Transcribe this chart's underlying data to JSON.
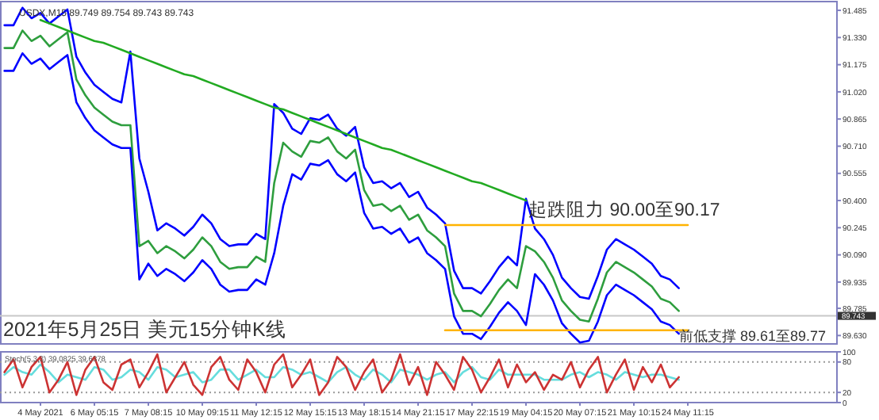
{
  "chart_data": [
    {
      "type": "line",
      "title": "USDX,M15 89.749 89.754 89.743 89.743",
      "annotations": [
        "起跌阻力 90.00至90.17",
        "前低支撑 89.61至89.77",
        "2021年5月25日 美元15分钟K线"
      ],
      "categories": [
        null,
        null,
        null,
        null,
        null,
        null,
        null,
        null,
        null,
        null,
        null,
        null,
        null,
        null,
        null,
        null,
        null,
        null,
        null,
        null,
        null,
        null,
        null,
        null,
        null,
        null,
        null,
        null,
        null,
        null,
        null,
        null,
        null,
        null,
        null,
        null,
        null,
        null,
        null,
        null,
        null,
        null,
        null,
        null,
        null,
        null,
        null,
        null,
        null,
        null,
        null,
        null,
        null,
        null,
        null,
        null,
        null,
        null,
        null,
        null,
        null,
        null,
        null,
        null,
        null,
        null,
        null,
        null,
        null,
        null,
        null,
        null,
        null,
        null,
        null,
        null,
        null,
        null,
        null,
        null,
        null,
        null,
        null,
        null,
        null,
        null,
        null,
        null,
        null,
        null,
        null,
        null,
        null
      ],
      "series": [
        {
          "color": "#0000ff",
          "values": [
            91.4,
            91.4,
            91.5,
            91.44,
            91.47,
            91.41,
            91.45,
            91.49,
            91.22,
            91.13,
            91.06,
            91.02,
            90.98,
            90.96,
            91.25,
            90.64,
            90.45,
            90.23,
            90.27,
            90.24,
            90.2,
            90.25,
            90.32,
            90.27,
            90.18,
            90.14,
            90.15,
            90.15,
            90.21,
            90.18,
            90.95,
            90.9,
            90.81,
            90.78,
            90.87,
            90.86,
            90.89,
            90.81,
            90.77,
            90.82,
            90.59,
            90.5,
            90.51,
            90.47,
            90.5,
            90.42,
            90.45,
            90.36,
            90.32,
            90.27,
            90.0,
            89.9,
            89.9,
            89.87,
            89.94,
            90.02,
            90.08,
            90.03,
            90.41,
            90.24,
            90.18,
            90.09,
            89.96,
            89.9,
            89.85,
            89.84,
            89.97,
            90.12,
            90.18,
            90.15,
            90.12,
            90.08,
            90.04,
            89.97,
            89.95,
            89.9,
            null,
            null,
            null,
            null,
            null,
            null,
            null,
            null,
            null,
            null,
            null,
            null,
            null,
            null,
            null,
            null,
            null
          ]
        },
        {
          "color": "#2e9e3e",
          "values": [
            91.27,
            91.27,
            91.37,
            91.31,
            91.34,
            91.28,
            91.32,
            91.36,
            91.09,
            91.0,
            90.93,
            90.89,
            90.85,
            90.83,
            90.83,
            90.14,
            90.17,
            90.1,
            90.14,
            90.11,
            90.07,
            90.12,
            90.19,
            90.14,
            90.05,
            90.01,
            90.02,
            90.02,
            90.08,
            90.05,
            90.5,
            90.73,
            90.68,
            90.65,
            90.74,
            90.73,
            90.76,
            90.68,
            90.64,
            90.69,
            90.46,
            90.37,
            90.38,
            90.34,
            90.37,
            90.29,
            90.32,
            90.23,
            90.19,
            90.14,
            89.87,
            89.77,
            89.77,
            89.74,
            89.81,
            89.89,
            89.95,
            89.9,
            90.14,
            90.11,
            90.05,
            89.96,
            89.83,
            89.77,
            89.72,
            89.71,
            89.84,
            89.99,
            90.05,
            90.02,
            89.99,
            89.95,
            89.91,
            89.84,
            89.82,
            89.77,
            null,
            null,
            null,
            null,
            null,
            null,
            null,
            null,
            null,
            null,
            null,
            null,
            null,
            null,
            null,
            null,
            null
          ]
        },
        {
          "color": "#0000ff",
          "values": [
            91.14,
            91.14,
            91.24,
            91.18,
            91.21,
            91.15,
            91.19,
            91.23,
            90.96,
            90.87,
            90.8,
            90.76,
            90.72,
            90.7,
            90.7,
            89.95,
            90.04,
            89.97,
            90.01,
            89.98,
            89.94,
            89.99,
            90.06,
            90.01,
            89.92,
            89.88,
            89.89,
            89.89,
            89.95,
            89.92,
            90.1,
            90.37,
            90.55,
            90.52,
            90.61,
            90.6,
            90.63,
            90.55,
            90.51,
            90.56,
            90.33,
            90.24,
            90.25,
            90.21,
            90.24,
            90.16,
            90.19,
            90.1,
            90.06,
            90.01,
            89.74,
            89.64,
            89.64,
            89.61,
            89.68,
            89.76,
            89.82,
            89.77,
            89.69,
            89.98,
            89.92,
            89.83,
            89.7,
            89.64,
            89.59,
            89.6,
            89.71,
            89.86,
            89.92,
            89.89,
            89.86,
            89.82,
            89.78,
            89.71,
            89.69,
            89.64,
            null,
            null,
            null,
            null,
            null,
            null,
            null,
            null,
            null,
            null,
            null,
            null,
            null,
            null,
            null,
            null,
            null
          ]
        },
        {
          "color": "#22aa22",
          "values": [
            null,
            null,
            null,
            null,
            91.43,
            91.41,
            91.39,
            91.37,
            91.35,
            91.33,
            91.31,
            91.3,
            91.28,
            91.26,
            91.24,
            91.22,
            91.2,
            91.18,
            91.16,
            91.14,
            91.12,
            91.11,
            91.09,
            91.07,
            91.05,
            91.03,
            91.01,
            90.99,
            90.97,
            90.95,
            90.93,
            90.92,
            90.9,
            90.88,
            90.86,
            90.84,
            90.82,
            90.8,
            90.78,
            90.76,
            90.74,
            90.72,
            90.7,
            90.69,
            90.67,
            90.65,
            90.63,
            90.61,
            90.59,
            90.57,
            90.55,
            90.53,
            90.51,
            90.5,
            90.48,
            90.46,
            90.44,
            90.42,
            90.4,
            null,
            null,
            null,
            null,
            null,
            null,
            null,
            null,
            null,
            null,
            null,
            null,
            null,
            null,
            null,
            null,
            null,
            null,
            null,
            null,
            null,
            null,
            null,
            null,
            null,
            null,
            null,
            null,
            null,
            null,
            null,
            null,
            null,
            null
          ]
        },
        {
          "color": "#ffb300",
          "values": [
            null,
            null,
            null,
            null,
            null,
            null,
            null,
            null,
            null,
            null,
            null,
            null,
            null,
            null,
            null,
            null,
            null,
            null,
            null,
            null,
            null,
            null,
            null,
            null,
            null,
            null,
            null,
            null,
            null,
            null,
            null,
            null,
            null,
            null,
            null,
            null,
            null,
            null,
            null,
            null,
            null,
            null,
            null,
            null,
            null,
            null,
            null,
            null,
            null,
            90.26,
            90.26,
            90.26,
            90.26,
            90.26,
            90.26,
            90.26,
            90.26,
            90.26,
            90.26,
            90.26,
            90.26,
            90.26,
            90.26,
            90.26,
            90.26,
            90.26,
            90.26,
            90.26,
            90.26,
            90.26,
            90.26,
            90.26,
            90.26,
            90.26,
            90.26,
            90.26,
            90.26,
            null,
            null,
            null,
            null,
            null,
            null,
            null,
            null,
            null,
            null,
            null,
            null,
            null,
            null,
            null,
            null
          ]
        },
        {
          "color": "#ffb300",
          "values": [
            null,
            null,
            null,
            null,
            null,
            null,
            null,
            null,
            null,
            null,
            null,
            null,
            null,
            null,
            null,
            null,
            null,
            null,
            null,
            null,
            null,
            null,
            null,
            null,
            null,
            null,
            null,
            null,
            null,
            null,
            null,
            null,
            null,
            null,
            null,
            null,
            null,
            null,
            null,
            null,
            null,
            null,
            null,
            null,
            null,
            null,
            null,
            null,
            null,
            89.66,
            89.66,
            89.66,
            89.66,
            89.66,
            89.66,
            89.66,
            89.66,
            89.66,
            89.66,
            89.66,
            89.66,
            89.66,
            89.66,
            89.66,
            89.66,
            89.66,
            89.66,
            89.66,
            89.66,
            89.66,
            89.66,
            89.66,
            89.66,
            89.66,
            89.66,
            89.66,
            89.66,
            null,
            null,
            null,
            null,
            null,
            null,
            null,
            null,
            null,
            null,
            null,
            null,
            null,
            null,
            null,
            null
          ]
        }
      ],
      "ylim": [
        89.582,
        91.535
      ],
      "yticks": [
        91.485,
        {
          "value": 91.33,
          "label": "91.330"
        },
        91.175,
        {
          "value": 91.02,
          "label": "91.020"
        },
        90.865,
        {
          "value": 90.71,
          "label": "90.710"
        },
        90.555,
        {
          "value": 90.4,
          "label": "90.400"
        },
        90.245,
        {
          "value": 90.09,
          "label": "90.090"
        },
        89.935,
        89.785,
        {
          "value": 89.63,
          "label": "89.630"
        }
      ],
      "ref_lines": [
        {
          "axis": "y",
          "value": 89.743,
          "label": "89.743",
          "color": "#c8c8c8"
        }
      ],
      "tick_labels": "y"
    },
    {
      "type": "line",
      "annotations": [
        "Stoch(5,3,3) 39.0825 39.6378"
      ],
      "categories": [
        null,
        null,
        null,
        null,
        "4 May 2021",
        null,
        null,
        null,
        null,
        null,
        "6 May 05:15",
        null,
        null,
        null,
        null,
        null,
        "7 May 08:15",
        null,
        null,
        null,
        null,
        null,
        "10 May 09:15",
        null,
        null,
        null,
        null,
        null,
        "11 May 12:15",
        null,
        null,
        null,
        null,
        null,
        "12 May 15:15",
        null,
        null,
        null,
        null,
        null,
        "13 May 18:15",
        null,
        null,
        null,
        null,
        null,
        "14 May 21:15",
        null,
        null,
        null,
        null,
        null,
        "17 May 22:15",
        null,
        null,
        null,
        null,
        null,
        "19 May 04:15",
        null,
        null,
        null,
        null,
        null,
        "20 May 07:15",
        null,
        null,
        null,
        null,
        null,
        "21 May 10:15",
        null,
        null,
        null,
        null,
        null,
        "24 May 11:15",
        null,
        null,
        null,
        null,
        null,
        null,
        null,
        null,
        null,
        null,
        null,
        null,
        null,
        null,
        null,
        null
      ],
      "series": [
        {
          "color": "#66dddd",
          "values": [
            55,
            70,
            60,
            55,
            75,
            60,
            40,
            55,
            50,
            45,
            70,
            65,
            45,
            50,
            65,
            60,
            45,
            70,
            65,
            50,
            55,
            60,
            40,
            45,
            65,
            65,
            45,
            55,
            65,
            50,
            50,
            70,
            65,
            55,
            60,
            50,
            40,
            60,
            70,
            55,
            45,
            65,
            55,
            40,
            65,
            60,
            55,
            45,
            55,
            60,
            40,
            60,
            70,
            50,
            45,
            65,
            55,
            55,
            55,
            55,
            45,
            45,
            45,
            55,
            60,
            50,
            60,
            55,
            45,
            60,
            55,
            50,
            55,
            55,
            50,
            45,
            null,
            null,
            null,
            null,
            null,
            null,
            null,
            null,
            null,
            null,
            null,
            null,
            null,
            null,
            null,
            null,
            null
          ]
        },
        {
          "color": "#cc3333",
          "values": [
            60,
            85,
            30,
            70,
            90,
            20,
            45,
            80,
            15,
            65,
            90,
            40,
            25,
            75,
            85,
            30,
            60,
            95,
            20,
            50,
            80,
            35,
            15,
            70,
            90,
            45,
            25,
            85,
            60,
            20,
            75,
            95,
            30,
            55,
            85,
            15,
            40,
            90,
            70,
            25,
            60,
            85,
            20,
            45,
            95,
            35,
            70,
            15,
            80,
            55,
            25,
            90,
            65,
            20,
            50,
            85,
            30,
            75,
            40,
            60,
            25,
            55,
            45,
            80,
            30,
            65,
            90,
            20,
            55,
            85,
            25,
            70,
            40,
            75,
            30,
            50,
            null,
            null,
            null,
            null,
            null,
            null,
            null,
            null,
            null,
            null,
            null,
            null,
            null,
            null,
            null,
            null,
            null
          ]
        }
      ],
      "ylim": [
        0,
        100
      ],
      "yticks": [
        0,
        20,
        80,
        100
      ],
      "ref_lines": [
        {
          "axis": "y",
          "value": 20,
          "color": "#999999",
          "line_style": "dotted"
        },
        {
          "axis": "y",
          "value": 80,
          "color": "#999999",
          "line_style": "dotted"
        }
      ]
    }
  ]
}
